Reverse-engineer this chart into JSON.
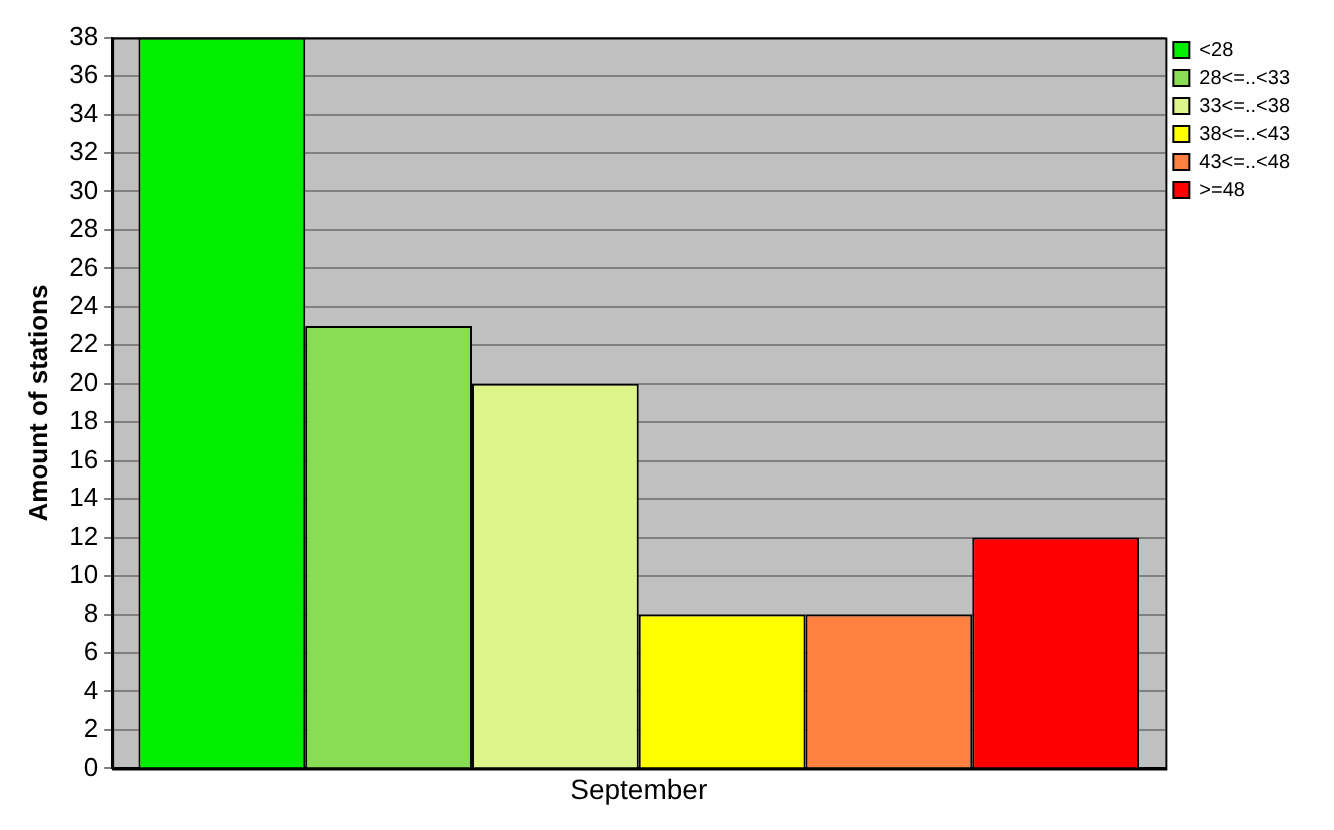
{
  "chart_data": {
    "type": "bar",
    "categories": [
      "September"
    ],
    "ylabel": "Amount of stations",
    "series": [
      {
        "name": "<28",
        "color": "#00ee00",
        "values": [
          38
        ]
      },
      {
        "name": "28<=..<33",
        "color": "#88dd55",
        "values": [
          23
        ]
      },
      {
        "name": "33<=..<38",
        "color": "#ddf58a",
        "values": [
          20
        ]
      },
      {
        "name": "38<=..<43",
        "color": "#ffff00",
        "values": [
          8
        ]
      },
      {
        "name": "43<=..<48",
        "color": "#ff8040",
        "values": [
          8
        ]
      },
      {
        "name": ">=48",
        "color": "#ff0000",
        "values": [
          12
        ]
      }
    ],
    "ylim": [
      0,
      38
    ],
    "yticks": [
      0,
      2,
      4,
      6,
      8,
      10,
      12,
      14,
      16,
      18,
      20,
      22,
      24,
      26,
      28,
      30,
      32,
      34,
      36,
      38
    ],
    "grid": "y",
    "legend": "top right"
  }
}
